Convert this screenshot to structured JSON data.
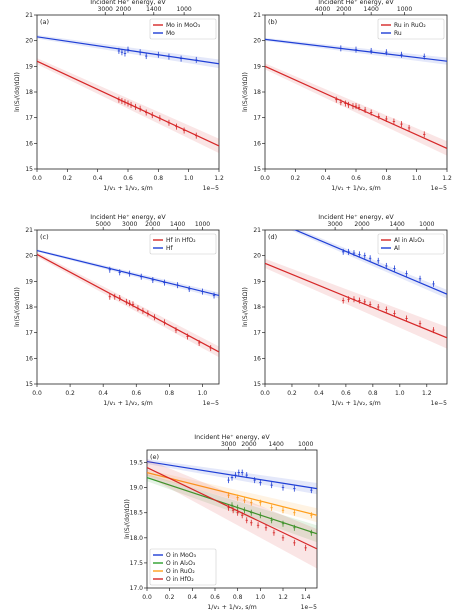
{
  "chart_data": [
    {
      "type": "scatter",
      "panel": "(a)",
      "xlabel": "1/v₁ + 1/v₂, s/m",
      "ylabel": "ln(Sᵢ/(dσ/dΩ))",
      "top_axis_label": "Incident He⁺ energy, eV",
      "xlim": [
        0,
        1.2
      ],
      "ylim": [
        15,
        21
      ],
      "x_scale_note": "1e−5",
      "x_ticks": [
        "0.0",
        "0.2",
        "0.4",
        "0.6",
        "0.8",
        "1.0",
        "1.2"
      ],
      "y_ticks": [
        "15",
        "16",
        "17",
        "18",
        "19",
        "20",
        "21"
      ],
      "top_ticks": [
        {
          "x": 0.45,
          "label": "3000"
        },
        {
          "x": 0.57,
          "label": "2000"
        },
        {
          "x": 0.77,
          "label": "1400"
        },
        {
          "x": 0.97,
          "label": "1000"
        }
      ],
      "legend": "top-right",
      "series": [
        {
          "name": "Mo in MoO₃",
          "color": "#d62728",
          "line": [
            [
              0,
              19.2
            ],
            [
              1.2,
              15.9
            ]
          ],
          "band": 0.2,
          "points": [
            [
              0.54,
              17.7
            ],
            [
              0.56,
              17.65
            ],
            [
              0.58,
              17.6
            ],
            [
              0.6,
              17.55
            ],
            [
              0.62,
              17.5
            ],
            [
              0.65,
              17.42
            ],
            [
              0.68,
              17.35
            ],
            [
              0.72,
              17.2
            ],
            [
              0.76,
              17.1
            ],
            [
              0.81,
              16.98
            ],
            [
              0.87,
              16.8
            ],
            [
              0.92,
              16.65
            ],
            [
              0.97,
              16.5
            ],
            [
              1.05,
              16.3
            ]
          ]
        },
        {
          "name": "Mo",
          "color": "#1f3fd6",
          "line": [
            [
              0,
              20.15
            ],
            [
              1.2,
              19.1
            ]
          ],
          "band": 0.12,
          "points": [
            [
              0.54,
              19.6
            ],
            [
              0.56,
              19.55
            ],
            [
              0.58,
              19.5
            ],
            [
              0.6,
              19.65
            ],
            [
              0.68,
              19.55
            ],
            [
              0.72,
              19.4
            ],
            [
              0.8,
              19.45
            ],
            [
              0.87,
              19.38
            ],
            [
              0.95,
              19.3
            ],
            [
              1.05,
              19.25
            ]
          ]
        }
      ]
    },
    {
      "type": "scatter",
      "panel": "(b)",
      "xlabel": "1/v₁ + 1/v₂, s/m",
      "ylabel": "ln(Sᵢ/(dσ/dΩ))",
      "top_axis_label": "Incident He⁺ energy, eV",
      "xlim": [
        0,
        1.2
      ],
      "ylim": [
        15,
        21
      ],
      "x_scale_note": "1e−5",
      "x_ticks": [
        "0.0",
        "0.2",
        "0.4",
        "0.6",
        "0.8",
        "1.0",
        "1.2"
      ],
      "y_ticks": [
        "15",
        "16",
        "17",
        "18",
        "19",
        "20",
        "21"
      ],
      "top_ticks": [
        {
          "x": 0.38,
          "label": "4000"
        },
        {
          "x": 0.52,
          "label": "2000"
        },
        {
          "x": 0.7,
          "label": "1400"
        },
        {
          "x": 0.92,
          "label": "1000"
        }
      ],
      "legend": "top-right",
      "series": [
        {
          "name": "Ru in RuO₂",
          "color": "#d62728",
          "line": [
            [
              0,
              19.0
            ],
            [
              1.2,
              15.8
            ]
          ],
          "band": 0.2,
          "points": [
            [
              0.47,
              17.7
            ],
            [
              0.5,
              17.6
            ],
            [
              0.53,
              17.55
            ],
            [
              0.55,
              17.5
            ],
            [
              0.58,
              17.45
            ],
            [
              0.6,
              17.45
            ],
            [
              0.62,
              17.4
            ],
            [
              0.66,
              17.3
            ],
            [
              0.7,
              17.2
            ],
            [
              0.75,
              17.05
            ],
            [
              0.8,
              16.95
            ],
            [
              0.85,
              16.85
            ],
            [
              0.9,
              16.75
            ],
            [
              0.95,
              16.6
            ],
            [
              1.05,
              16.35
            ]
          ]
        },
        {
          "name": "Ru",
          "color": "#1f3fd6",
          "line": [
            [
              0,
              20.05
            ],
            [
              1.2,
              19.2
            ]
          ],
          "band": 0.1,
          "points": [
            [
              0.5,
              19.7
            ],
            [
              0.6,
              19.65
            ],
            [
              0.7,
              19.6
            ],
            [
              0.8,
              19.55
            ],
            [
              0.9,
              19.45
            ],
            [
              1.05,
              19.38
            ]
          ]
        }
      ]
    },
    {
      "type": "scatter",
      "panel": "(c)",
      "xlabel": "1/v₁ + 1/v₂, s/m",
      "ylabel": "ln(Sᵢ/(dσ/dΩ))",
      "top_axis_label": "Incident He⁺ energy, eV",
      "xlim": [
        0,
        1.1
      ],
      "ylim": [
        15,
        21
      ],
      "x_scale_note": "1e−5",
      "x_ticks": [
        "0.0",
        "0.2",
        "0.4",
        "0.6",
        "0.8",
        "1.0"
      ],
      "y_ticks": [
        "15",
        "16",
        "17",
        "18",
        "19",
        "20",
        "21"
      ],
      "top_ticks": [
        {
          "x": 0.4,
          "label": "5000"
        },
        {
          "x": 0.56,
          "label": "3000"
        },
        {
          "x": 0.7,
          "label": "2000"
        },
        {
          "x": 0.85,
          "label": "1400"
        },
        {
          "x": 1.0,
          "label": "1000"
        }
      ],
      "legend": "top-right",
      "series": [
        {
          "name": "Hf in HfO₂",
          "color": "#d62728",
          "line": [
            [
              0,
              20.05
            ],
            [
              1.1,
              16.25
            ]
          ],
          "band": 0.15,
          "points": [
            [
              0.44,
              18.4
            ],
            [
              0.47,
              18.4
            ],
            [
              0.5,
              18.35
            ],
            [
              0.54,
              18.2
            ],
            [
              0.56,
              18.15
            ],
            [
              0.58,
              18.1
            ],
            [
              0.61,
              17.95
            ],
            [
              0.64,
              17.85
            ],
            [
              0.67,
              17.75
            ],
            [
              0.71,
              17.6
            ],
            [
              0.77,
              17.4
            ],
            [
              0.84,
              17.1
            ],
            [
              0.91,
              16.85
            ],
            [
              0.98,
              16.6
            ],
            [
              1.05,
              16.4
            ]
          ]
        },
        {
          "name": "Hf",
          "color": "#1f3fd6",
          "line": [
            [
              0,
              20.2
            ],
            [
              1.1,
              18.45
            ]
          ],
          "band": 0.08,
          "points": [
            [
              0.44,
              19.45
            ],
            [
              0.5,
              19.35
            ],
            [
              0.56,
              19.3
            ],
            [
              0.63,
              19.18
            ],
            [
              0.7,
              19.05
            ],
            [
              0.77,
              18.95
            ],
            [
              0.85,
              18.85
            ],
            [
              0.92,
              18.7
            ],
            [
              1.0,
              18.6
            ],
            [
              1.07,
              18.45
            ]
          ]
        }
      ]
    },
    {
      "type": "scatter",
      "panel": "(d)",
      "xlabel": "1/v₁ + 1/v₂, s/m",
      "ylabel": "ln(Sᵢ/(dσ/dΩ))",
      "top_axis_label": "Incident He⁺ energy, eV",
      "xlim": [
        0,
        1.35
      ],
      "ylim": [
        15,
        21
      ],
      "x_scale_note": "1e−5",
      "x_ticks": [
        "0.0",
        "0.2",
        "0.4",
        "0.6",
        "0.8",
        "1.0",
        "1.2"
      ],
      "y_ticks": [
        "15",
        "16",
        "17",
        "18",
        "19",
        "20",
        "21"
      ],
      "top_ticks": [
        {
          "x": 0.52,
          "label": "3000"
        },
        {
          "x": 0.72,
          "label": "2000"
        },
        {
          "x": 0.98,
          "label": "1400"
        },
        {
          "x": 1.2,
          "label": "1000"
        }
      ],
      "legend": "top-right",
      "series": [
        {
          "name": "Al in Al₂O₃",
          "color": "#d62728",
          "line": [
            [
              0,
              19.7
            ],
            [
              1.35,
              16.8
            ]
          ],
          "band": 0.3,
          "points": [
            [
              0.58,
              18.25
            ],
            [
              0.62,
              18.3
            ],
            [
              0.66,
              18.3
            ],
            [
              0.7,
              18.25
            ],
            [
              0.74,
              18.2
            ],
            [
              0.78,
              18.1
            ],
            [
              0.84,
              18.0
            ],
            [
              0.9,
              17.9
            ],
            [
              0.96,
              17.75
            ],
            [
              1.05,
              17.55
            ],
            [
              1.15,
              17.35
            ],
            [
              1.25,
              17.1
            ]
          ]
        },
        {
          "name": "Al",
          "color": "#1f3fd6",
          "line": [
            [
              0,
              21.5
            ],
            [
              1.35,
              18.5
            ]
          ],
          "band": 0.12,
          "points": [
            [
              0.58,
              20.15
            ],
            [
              0.62,
              20.15
            ],
            [
              0.66,
              20.1
            ],
            [
              0.7,
              20.05
            ],
            [
              0.74,
              20.0
            ],
            [
              0.78,
              19.9
            ],
            [
              0.84,
              19.8
            ],
            [
              0.9,
              19.6
            ],
            [
              0.96,
              19.5
            ],
            [
              1.05,
              19.3
            ],
            [
              1.15,
              19.1
            ],
            [
              1.25,
              18.9
            ]
          ]
        }
      ]
    },
    {
      "type": "scatter",
      "panel": "(e)",
      "xlabel": "1/v₁ + 1/v₂, s/m",
      "ylabel": "ln(Sᵢ/(dσ/dΩ))",
      "top_axis_label": "Incident He⁺ energy, eV",
      "xlim": [
        0,
        1.5
      ],
      "ylim": [
        17.0,
        19.75
      ],
      "x_scale_note": "1e−5",
      "x_ticks": [
        "0.0",
        "0.2",
        "0.4",
        "0.6",
        "0.8",
        "1.0",
        "1.2",
        "1.4"
      ],
      "y_ticks": [
        "17.0",
        "17.5",
        "18.0",
        "18.5",
        "19.0",
        "19.5"
      ],
      "top_ticks": [
        {
          "x": 0.72,
          "label": "3000"
        },
        {
          "x": 0.9,
          "label": "2000"
        },
        {
          "x": 1.14,
          "label": "1400"
        },
        {
          "x": 1.4,
          "label": "1000"
        }
      ],
      "legend": "bottom-left",
      "series": [
        {
          "name": "O in MoO₃",
          "color": "#1f3fd6",
          "line": [
            [
              0,
              19.52
            ],
            [
              1.5,
              18.98
            ]
          ],
          "band": 0.08,
          "points": [
            [
              0.72,
              19.15
            ],
            [
              0.75,
              19.2
            ],
            [
              0.78,
              19.25
            ],
            [
              0.81,
              19.3
            ],
            [
              0.84,
              19.3
            ],
            [
              0.88,
              19.25
            ],
            [
              0.95,
              19.15
            ],
            [
              1.0,
              19.1
            ],
            [
              1.1,
              19.05
            ],
            [
              1.2,
              19.0
            ],
            [
              1.3,
              18.98
            ],
            [
              1.45,
              18.95
            ]
          ]
        },
        {
          "name": "O in Al₂O₃",
          "color": "#2ca02c",
          "line": [
            [
              0,
              19.2
            ],
            [
              1.5,
              18.08
            ]
          ],
          "band": 0.12,
          "points": [
            [
              0.75,
              18.65
            ],
            [
              0.8,
              18.6
            ],
            [
              0.86,
              18.55
            ],
            [
              0.92,
              18.5
            ],
            [
              1.0,
              18.45
            ],
            [
              1.1,
              18.35
            ],
            [
              1.2,
              18.28
            ],
            [
              1.3,
              18.2
            ],
            [
              1.45,
              18.1
            ]
          ]
        },
        {
          "name": "O in RuO₂",
          "color": "#ff9f1c",
          "line": [
            [
              0,
              19.3
            ],
            [
              1.5,
              18.45
            ]
          ],
          "band": 0.1,
          "points": [
            [
              0.72,
              18.85
            ],
            [
              0.8,
              18.8
            ],
            [
              0.86,
              18.75
            ],
            [
              0.92,
              18.7
            ],
            [
              1.0,
              18.7
            ],
            [
              1.1,
              18.6
            ],
            [
              1.2,
              18.55
            ],
            [
              1.3,
              18.5
            ],
            [
              1.45,
              18.45
            ]
          ]
        },
        {
          "name": "O in HfO₂",
          "color": "#d62728",
          "line": [
            [
              0,
              19.4
            ],
            [
              1.5,
              17.78
            ]
          ],
          "band": 0.28,
          "points": [
            [
              0.72,
              18.6
            ],
            [
              0.76,
              18.55
            ],
            [
              0.8,
              18.5
            ],
            [
              0.84,
              18.45
            ],
            [
              0.88,
              18.35
            ],
            [
              0.92,
              18.3
            ],
            [
              0.98,
              18.25
            ],
            [
              1.05,
              18.2
            ],
            [
              1.12,
              18.1
            ],
            [
              1.2,
              18.0
            ],
            [
              1.3,
              17.9
            ],
            [
              1.4,
              17.8
            ]
          ]
        }
      ]
    }
  ]
}
